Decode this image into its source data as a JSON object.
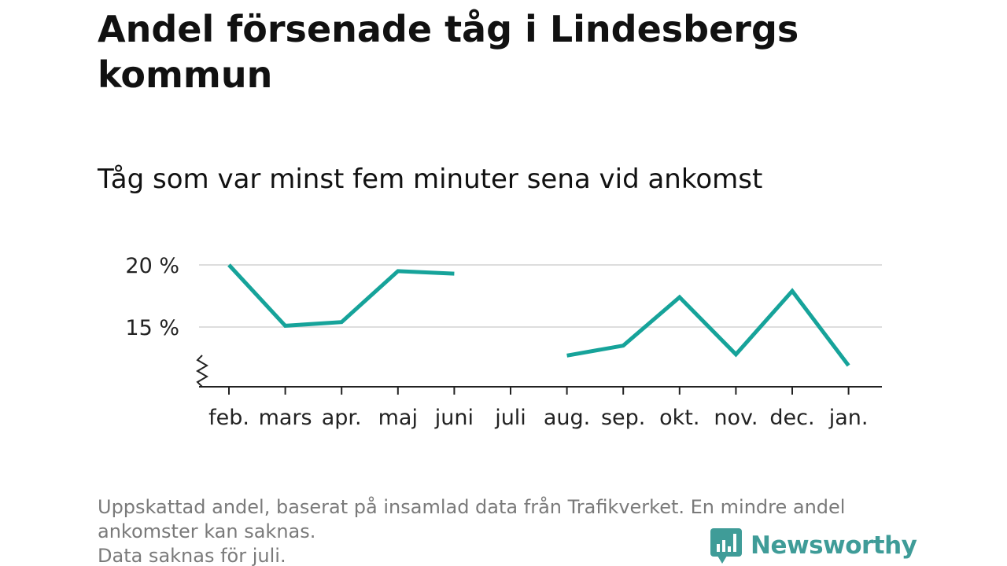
{
  "title": "Andel försenade tåg i Lindesbergs kommun",
  "subtitle": "Tåg som var minst fem minuter sena vid ankomst",
  "footnote": {
    "line1": "Uppskattad andel, baserat på insamlad data från Trafikverket. En mindre andel",
    "line2": "ankomster kan saknas.",
    "line3": "Data saknas för juli."
  },
  "brand": {
    "name": "Newsworthy",
    "icon": "newsworthy-logo-icon",
    "color": "#3f9c98"
  },
  "chart_data": {
    "type": "line",
    "categories": [
      "feb.",
      "mars",
      "apr.",
      "maj",
      "juni",
      "juli",
      "aug.",
      "sep.",
      "okt.",
      "nov.",
      "dec.",
      "jan."
    ],
    "series": [
      {
        "values": [
          20.0,
          15.1,
          15.4,
          19.5,
          19.3,
          null,
          12.7,
          13.5,
          17.4,
          12.8,
          17.9,
          11.9
        ],
        "color": "#16a39a"
      }
    ],
    "yticks": [
      15,
      20
    ],
    "ytick_labels": [
      "15 %",
      "20 %"
    ],
    "ylim": [
      10,
      20
    ],
    "axis_break": true,
    "grid": true,
    "xlabel": "",
    "ylabel": ""
  }
}
